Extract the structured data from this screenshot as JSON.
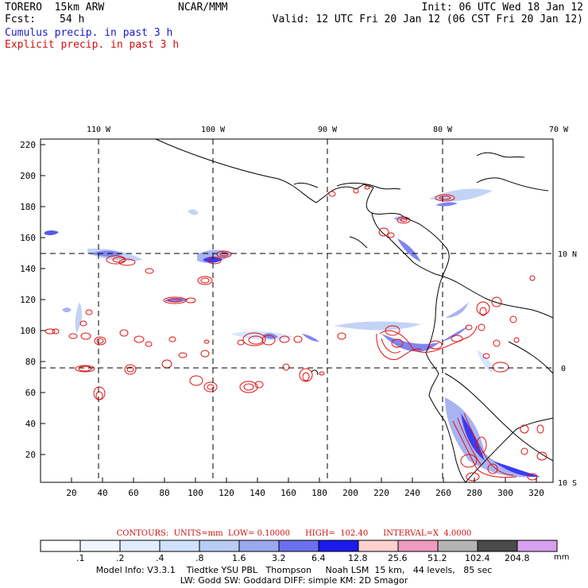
{
  "header": {
    "model": "TORERO  15km ARW",
    "org": "NCAR/MMM",
    "init": "Init: 06 UTC Wed 18 Jan 12",
    "fcst_label": "Fcst:",
    "fcst_value": "54 h",
    "valid": "Valid: 12 UTC Fri 20 Jan 12 (06 CST Fri 20 Jan 12)",
    "legend_cumulus": "Cumulus precip. in past 3 h",
    "legend_explicit": "Explicit precip. in past 3 h"
  },
  "map": {
    "top_lon_labels": [
      "110 W",
      "100 W",
      "90 W",
      "80 W",
      "70 W"
    ],
    "right_lat_labels": [
      "10 N",
      "0",
      "10 S"
    ],
    "x_ticks": [
      "20",
      "40",
      "60",
      "80",
      "100",
      "120",
      "140",
      "160",
      "180",
      "200",
      "220",
      "240",
      "260",
      "280",
      "300",
      "320"
    ],
    "y_ticks": [
      "20",
      "40",
      "60",
      "80",
      "100",
      "120",
      "140",
      "160",
      "180",
      "200",
      "220"
    ],
    "colors": {
      "coast": "#000000",
      "cumulus": "#2828e0",
      "explicit": "#e01010",
      "grid": "#000000"
    }
  },
  "footer": {
    "contours": "CONTOURS:  UNITS=mm  LOW= 0.10000      HIGH=  102.40      INTERVAL=X  4.0000",
    "colorbar_labels": [
      ".1",
      ".2",
      ".4",
      ".8",
      "1.6",
      "3.2",
      "6.4",
      "12.8",
      "25.6",
      "51.2",
      "102.4",
      "204.8"
    ],
    "colorbar_unit": "mm",
    "colorbar_colors": [
      "#ffffff",
      "#f0f6ff",
      "#e2ecff",
      "#d0e2ff",
      "#b8ccf5",
      "#9aa8f0",
      "#6a70ee",
      "#1a1aee",
      "#ffd0d0",
      "#f09ac0",
      "#b4b4b4",
      "#4a4a4a",
      "#d8a0f0"
    ],
    "model_info": "Model Info: V3.3.1    Tiedtke YSU PBL   Thompson     Noah LSM  15 km,   44 levels,   85 sec",
    "model_info2": "LW: Godd SW: Goddard DIFF: simple KM: 2D Smagor"
  }
}
